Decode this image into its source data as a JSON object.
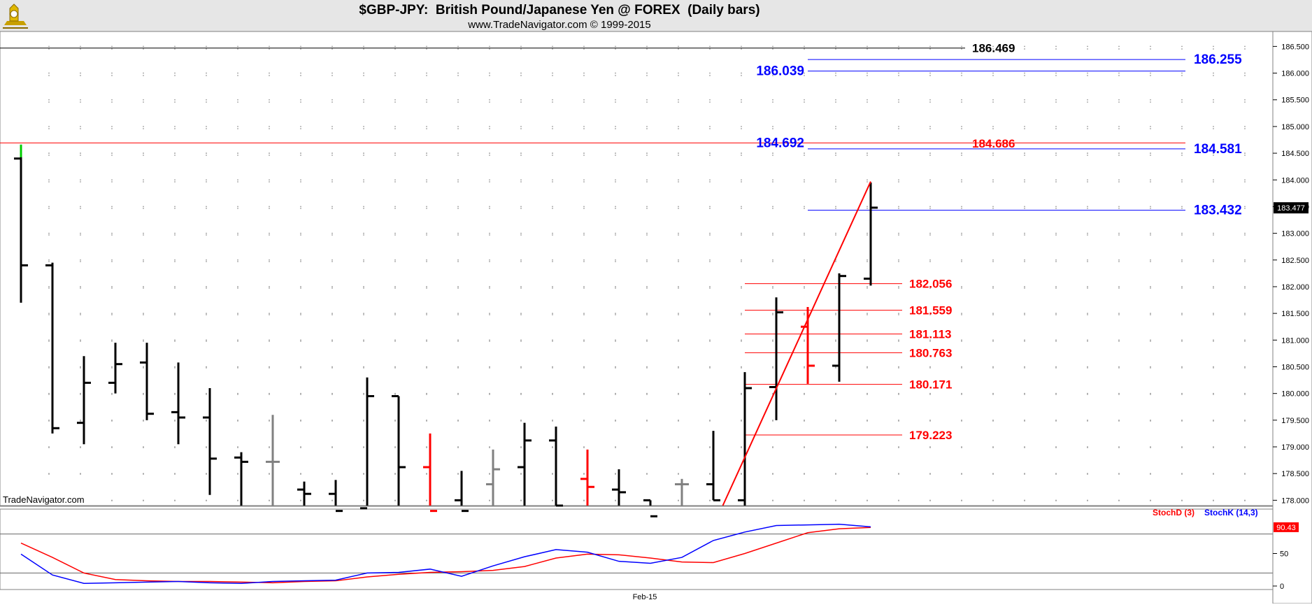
{
  "header": {
    "title": "$GBP-JPY:  British Pound/Japanese Yen @ FOREX  (Daily bars)",
    "subtitle": "www.TradeNavigator.com © 1999-2015",
    "logo_icon": "trade-navigator-logo-icon",
    "background": "#e6e6e6"
  },
  "watermark": "TradeNavigator.com",
  "chart_data": [
    {
      "type": "ohlc",
      "title": "$GBP-JPY:  British Pound/Japanese Yen @ FOREX  (Daily bars)",
      "ylim": [
        177.9,
        186.78
      ],
      "grid": "dotted",
      "yticks": [
        "178.000",
        "178.500",
        "179.000",
        "179.500",
        "180.000",
        "180.500",
        "181.000",
        "181.500",
        "182.000",
        "182.500",
        "183.000",
        "183.500",
        "184.000",
        "184.500",
        "185.000",
        "185.500",
        "186.000",
        "186.500"
      ],
      "xlabel_ticks": [
        {
          "label": "Feb-15",
          "bar": 20
        }
      ],
      "last_price": "183.477",
      "bars": [
        {
          "o": 184.4,
          "h": 184.66,
          "l": 181.7,
          "c": 182.4,
          "color": "black",
          "high_color": "#00cc00"
        },
        {
          "o": 182.4,
          "h": 182.45,
          "l": 179.25,
          "c": 179.35,
          "color": "black"
        },
        {
          "o": 179.45,
          "h": 180.7,
          "l": 179.05,
          "c": 180.2,
          "color": "black"
        },
        {
          "o": 180.2,
          "h": 180.95,
          "l": 180.0,
          "c": 180.55,
          "color": "black"
        },
        {
          "o": 180.58,
          "h": 180.95,
          "l": 179.5,
          "c": 179.62,
          "color": "black"
        },
        {
          "o": 179.65,
          "h": 180.58,
          "l": 179.05,
          "c": 179.55,
          "color": "black"
        },
        {
          "o": 179.55,
          "h": 180.1,
          "l": 178.1,
          "c": 178.78,
          "color": "black"
        },
        {
          "o": 178.8,
          "h": 178.9,
          "l": 177.4,
          "c": 178.72,
          "color": "black"
        },
        {
          "o": 178.72,
          "h": 179.6,
          "l": 177.7,
          "c": 178.72,
          "color": "gray"
        },
        {
          "o": 178.2,
          "h": 178.35,
          "l": 177.8,
          "c": 178.12,
          "color": "black"
        },
        {
          "o": 178.12,
          "h": 178.38,
          "l": 177.6,
          "c": 177.8,
          "color": "black"
        },
        {
          "o": 177.85,
          "h": 180.3,
          "l": 177.6,
          "c": 179.95,
          "color": "black"
        },
        {
          "o": 179.95,
          "h": 179.95,
          "l": 177.5,
          "c": 178.62,
          "color": "black"
        },
        {
          "o": 178.62,
          "h": 179.25,
          "l": 177.6,
          "c": 177.8,
          "color": "red"
        },
        {
          "o": 178.0,
          "h": 178.55,
          "l": 177.5,
          "c": 177.8,
          "color": "black"
        },
        {
          "o": 178.3,
          "h": 178.95,
          "l": 177.5,
          "c": 178.58,
          "color": "gray"
        },
        {
          "o": 178.62,
          "h": 179.45,
          "l": 177.6,
          "c": 179.12,
          "color": "black"
        },
        {
          "o": 179.12,
          "h": 179.38,
          "l": 177.6,
          "c": 177.9,
          "color": "black"
        },
        {
          "o": 178.4,
          "h": 178.95,
          "l": 177.7,
          "c": 178.25,
          "color": "red"
        },
        {
          "o": 178.2,
          "h": 178.58,
          "l": 177.8,
          "c": 178.15,
          "color": "black"
        },
        {
          "o": 178.0,
          "h": 178.0,
          "l": 177.6,
          "c": 177.7,
          "color": "black"
        },
        {
          "o": 178.3,
          "h": 178.4,
          "l": 177.85,
          "c": 178.3,
          "color": "gray"
        },
        {
          "o": 178.3,
          "h": 179.3,
          "l": 178.0,
          "c": 178.0,
          "color": "black"
        },
        {
          "o": 178.0,
          "h": 180.4,
          "l": 177.9,
          "c": 180.1,
          "color": "black"
        },
        {
          "o": 180.12,
          "h": 181.8,
          "l": 179.5,
          "c": 181.52,
          "color": "black"
        },
        {
          "o": 181.25,
          "h": 181.62,
          "l": 180.18,
          "c": 180.52,
          "color": "red"
        },
        {
          "o": 180.52,
          "h": 182.25,
          "l": 180.22,
          "c": 182.2,
          "color": "black"
        },
        {
          "o": 182.15,
          "h": 183.95,
          "l": 182.02,
          "c": 183.48,
          "color": "black"
        }
      ],
      "levels": [
        {
          "value": 186.469,
          "label": "186.469",
          "color": "#000000",
          "side": "left"
        },
        {
          "value": 186.255,
          "label": "186.255",
          "color": "#0000ff",
          "side": "right"
        },
        {
          "value": 186.039,
          "label": "186.039",
          "color": "#0000ff",
          "side": "left"
        },
        {
          "value": 184.692,
          "label": "184.692",
          "color": "#0000ff",
          "side": "left"
        },
        {
          "value": 184.686,
          "label": "184.686",
          "color": "#ff0000",
          "side": "mid"
        },
        {
          "value": 184.581,
          "label": "184.581",
          "color": "#0000ff",
          "side": "right"
        },
        {
          "value": 183.432,
          "label": "183.432",
          "color": "#0000ff",
          "side": "right"
        },
        {
          "value": 182.056,
          "label": "182.056",
          "color": "#ff0000",
          "side": "right"
        },
        {
          "value": 181.559,
          "label": "181.559",
          "color": "#ff0000",
          "side": "right"
        },
        {
          "value": 181.113,
          "label": "181.113",
          "color": "#ff0000",
          "side": "right"
        },
        {
          "value": 180.763,
          "label": "180.763",
          "color": "#ff0000",
          "side": "right"
        },
        {
          "value": 180.171,
          "label": "180.171",
          "color": "#ff0000",
          "side": "right"
        },
        {
          "value": 179.223,
          "label": "179.223",
          "color": "#ff0000",
          "side": "right"
        }
      ],
      "trendline": {
        "from": {
          "bar": 22.3,
          "value": 177.9
        },
        "to": {
          "bar": 27,
          "value": 183.97
        },
        "color": "#ff0000"
      }
    },
    {
      "type": "line",
      "ylim": [
        0,
        100
      ],
      "yticks": [
        "0",
        "50"
      ],
      "reference_lines": [
        20,
        80
      ],
      "last_value": "90.43",
      "series": [
        {
          "name": "StochD (3)",
          "color": "#ff0000",
          "values": [
            66,
            44,
            20,
            10,
            8,
            7,
            7,
            6,
            5,
            7,
            8,
            14,
            18,
            21,
            22,
            24,
            30,
            43,
            49,
            48,
            43,
            37,
            36,
            50,
            66,
            82,
            88,
            90
          ]
        },
        {
          "name": "StochK (14,3)",
          "color": "#0000ff",
          "values": [
            49,
            17,
            4,
            5,
            6,
            7,
            5,
            4,
            7,
            8,
            9,
            20,
            21,
            26,
            15,
            31,
            45,
            56,
            52,
            38,
            35,
            44,
            70,
            83,
            93,
            94,
            95,
            91
          ]
        }
      ]
    }
  ]
}
